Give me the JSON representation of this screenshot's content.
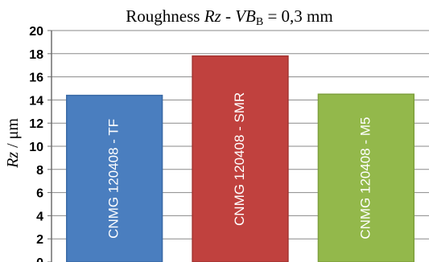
{
  "chart_data": {
    "type": "bar",
    "title_parts": [
      "Roughness ",
      "Rz",
      " - ",
      "VB",
      "B",
      " = 0,3 mm"
    ],
    "ylabel_parts": [
      "Rz",
      " / μm"
    ],
    "categories": [
      "CNMG 120408 - TF",
      "CNMG 120408 - SMR",
      "CNMG 120408 - M5"
    ],
    "values": [
      14.4,
      17.8,
      14.5
    ],
    "ylim": [
      0,
      20
    ],
    "yticks": [
      "0",
      "2",
      "4",
      "6",
      "8",
      "10",
      "12",
      "14",
      "16",
      "18",
      "20"
    ],
    "grid": true,
    "colors": [
      "#4a7ebf",
      "#c0413e",
      "#93b84b"
    ],
    "border_colors": [
      "#3a6aa6",
      "#a33431",
      "#7ea03c"
    ]
  }
}
